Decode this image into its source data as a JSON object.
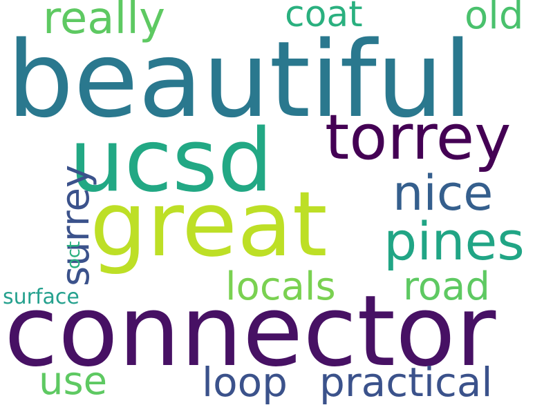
{
  "word_cloud": {
    "words": [
      {
        "text": "beautiful",
        "color": "#2a788e"
      },
      {
        "text": "connector",
        "color": "#471164"
      },
      {
        "text": "ucsd",
        "color": "#22a884"
      },
      {
        "text": "great",
        "color": "#bddf26"
      },
      {
        "text": "torrey",
        "color": "#440154"
      },
      {
        "text": "pines",
        "color": "#21a585"
      },
      {
        "text": "nice",
        "color": "#355f8d"
      },
      {
        "text": "really",
        "color": "#5ec962"
      },
      {
        "text": "coat",
        "color": "#2ab07f"
      },
      {
        "text": "old",
        "color": "#4ac16d"
      },
      {
        "text": "surrey",
        "color": "#3b528b"
      },
      {
        "text": "locals",
        "color": "#7ad151"
      },
      {
        "text": "road",
        "color": "#5ec962"
      },
      {
        "text": "oct",
        "color": "#2ab07f"
      },
      {
        "text": "surface",
        "color": "#25a18e"
      },
      {
        "text": "use",
        "color": "#5ec962"
      },
      {
        "text": "loop",
        "color": "#3b528b"
      },
      {
        "text": "practical",
        "color": "#3b528b"
      }
    ]
  }
}
